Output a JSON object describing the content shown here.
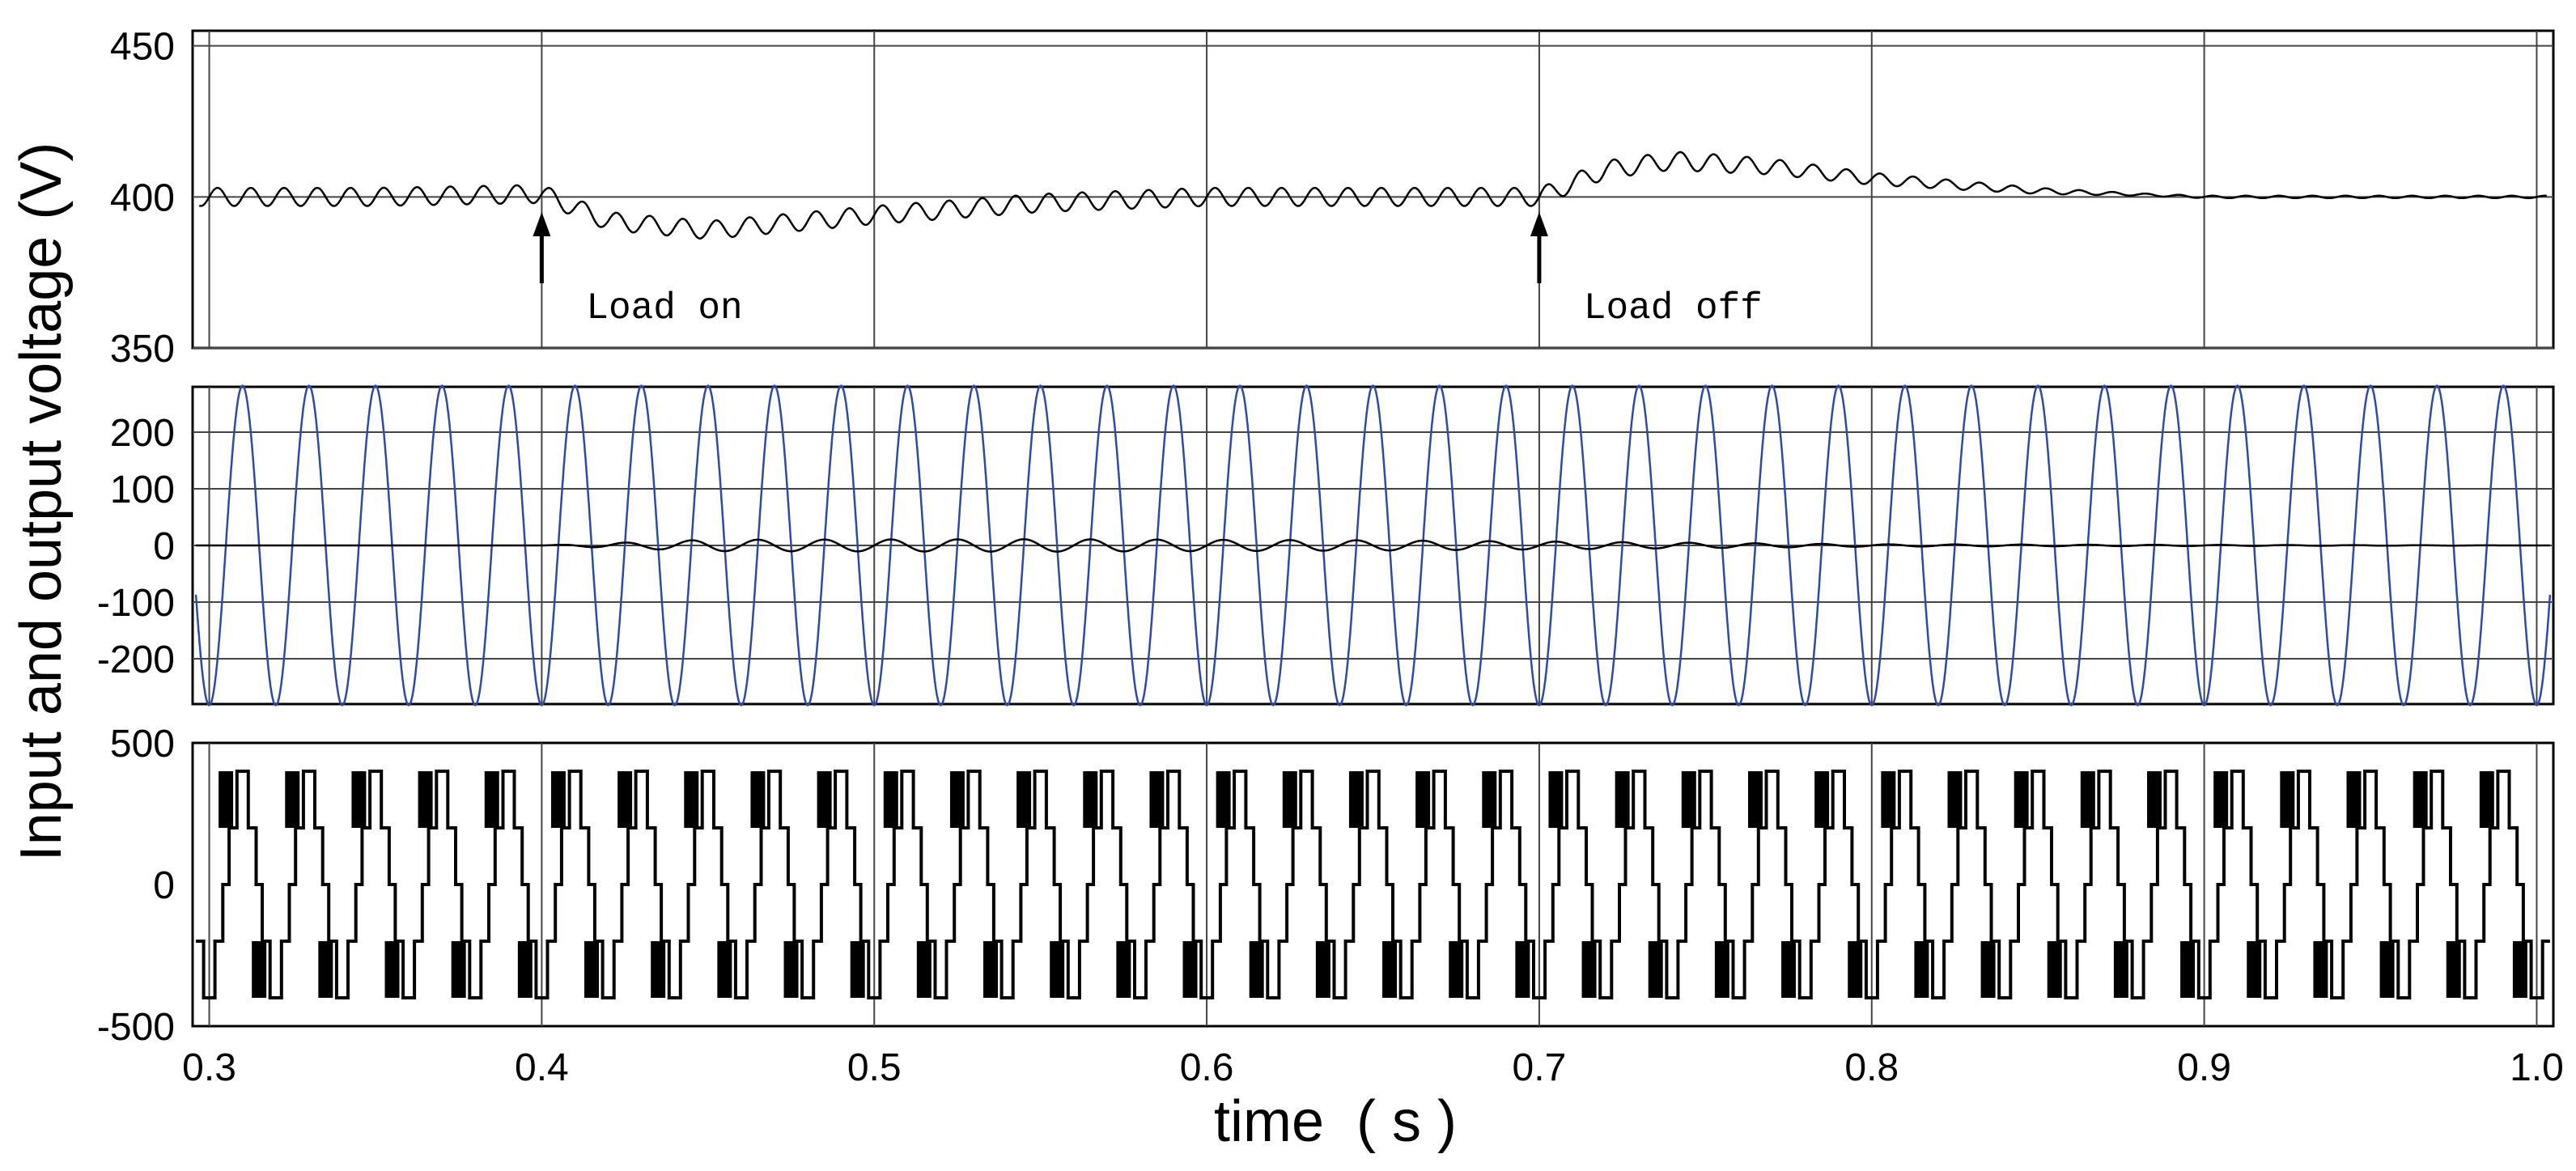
{
  "chart_data": [
    {
      "type": "line",
      "panel": "dc-link-voltage",
      "xlim": [
        0.295,
        1.005
      ],
      "ylim": [
        350,
        455
      ],
      "yticks": [
        350,
        400,
        450
      ],
      "grid": true,
      "series": [
        {
          "color": "#000000",
          "x": [
            0.295,
            0.35,
            0.4,
            0.42,
            0.45,
            0.5,
            0.55,
            0.6,
            0.65,
            0.7,
            0.72,
            0.74,
            0.77,
            0.8,
            0.85,
            0.9,
            0.95,
            1.0
          ],
          "y": [
            400,
            400,
            401,
            392,
            389,
            394,
            398,
            400,
            400,
            400,
            409,
            412,
            410,
            406,
            402,
            400,
            400,
            400
          ],
          "ripple_amplitude": 3
        }
      ],
      "annotations": [
        {
          "text": "Load on",
          "x": 0.4
        },
        {
          "text": "Load off",
          "x": 0.7
        }
      ]
    },
    {
      "type": "line",
      "panel": "input-output-ac",
      "xlim": [
        0.295,
        1.005
      ],
      "ylim": [
        -280,
        280
      ],
      "yticks": [
        -200,
        -100,
        0,
        100,
        200
      ],
      "grid": true,
      "series": [
        {
          "color": "#2c4aa8",
          "amplitude": 282,
          "frequency_hz": 50,
          "phase_deg": -90
        },
        {
          "color": "#000000",
          "amplitude_envelope": {
            "x": [
              0.295,
              0.4,
              0.45,
              0.55,
              0.65,
              0.7,
              0.8,
              1.0
            ],
            "y": [
              0,
              0,
              10,
              11,
              9,
              7,
              2,
              0
            ]
          },
          "frequency_hz": 50
        }
      ]
    },
    {
      "type": "line",
      "panel": "multilevel-output",
      "xlim": [
        0.295,
        1.005
      ],
      "ylim": [
        -500,
        500
      ],
      "yticks": [
        -500,
        0,
        500
      ],
      "grid": false,
      "series": [
        {
          "color": "#000000",
          "levels": [
            -400,
            -200,
            0,
            200,
            400
          ],
          "frequency_hz": 50
        }
      ]
    }
  ],
  "axes": {
    "xlabel": "time  ( s )",
    "ylabel": "Input and output voltage (V)",
    "xticks": [
      "0.3",
      "0.4",
      "0.5",
      "0.6",
      "0.7",
      "0.8",
      "0.9",
      "1.0"
    ]
  }
}
